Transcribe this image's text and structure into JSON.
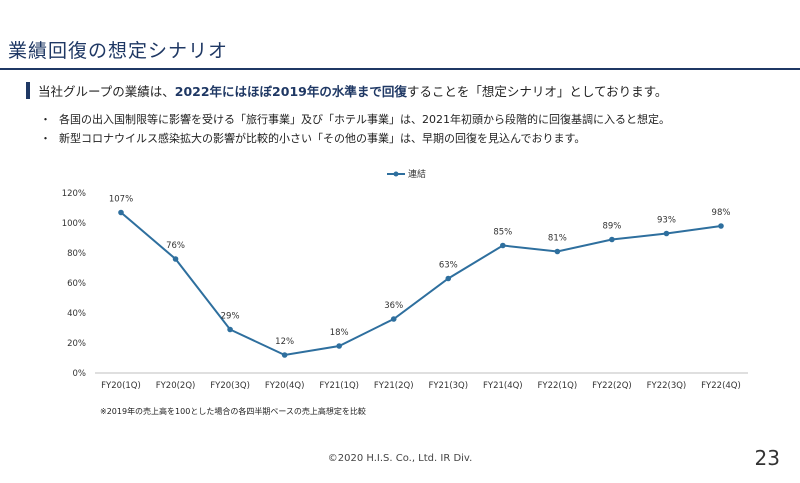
{
  "slide": {
    "title": "業績回復の想定シナリオ",
    "lead": {
      "pre": "当社グループの業績は、",
      "highlight": "2022年にはほぼ2019年の水準まで回復",
      "post": "することを「想定シナリオ」としております。"
    },
    "bullets": [
      {
        "marker": "・",
        "text": "各国の出入国制限等に影響を受ける「旅行事業」及び「ホテル事業」は、2021年初頭から段階的に回復基調に入ると想定。"
      },
      {
        "marker": "・",
        "text": "新型コロナウイルス感染拡大の影響が比較的小さい「その他の事業」は、早期の回復を見込んでおります。"
      }
    ],
    "note": "※2019年の売上高を100とした場合の各四半期ベースの売上高想定を比較",
    "footer": "©2020  H.I.S. Co., Ltd.  IR Div.",
    "page_number": "23"
  },
  "colors": {
    "accent": "#1f3864",
    "series": "#2e6f9e",
    "grid": "#d9d9d9"
  },
  "chart_data": {
    "type": "line",
    "legend_position": "top",
    "categories": [
      "FY20(1Q)",
      "FY20(2Q)",
      "FY20(3Q)",
      "FY20(4Q)",
      "FY21(1Q)",
      "FY21(2Q)",
      "FY21(3Q)",
      "FY21(4Q)",
      "FY22(1Q)",
      "FY22(2Q)",
      "FY22(3Q)",
      "FY22(4Q)"
    ],
    "series": [
      {
        "name": "連結",
        "values": [
          107,
          76,
          29,
          12,
          18,
          36,
          63,
          85,
          81,
          89,
          93,
          98
        ]
      }
    ],
    "data_labels": [
      "107%",
      "76%",
      "29%",
      "12%",
      "18%",
      "36%",
      "63%",
      "85%",
      "81%",
      "89%",
      "93%",
      "98%"
    ],
    "ylim": [
      0,
      120
    ],
    "yticks": [
      0,
      20,
      40,
      60,
      80,
      100,
      120
    ],
    "ytick_labels": [
      "0%",
      "20%",
      "40%",
      "60%",
      "80%",
      "100%",
      "120%"
    ],
    "grid": false
  }
}
